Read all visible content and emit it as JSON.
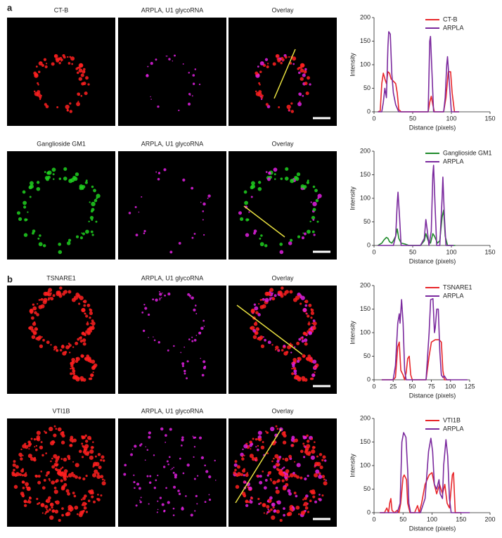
{
  "panel_labels": [
    "a",
    "b"
  ],
  "rows": [
    {
      "image_titles": [
        "CT-B",
        "ARPLA, U1 glycoRNA",
        "Overlay"
      ]
    },
    {
      "image_titles": [
        "Ganglioside GM1",
        "ARPLA, U1 glycoRNA",
        "Overlay"
      ]
    },
    {
      "image_titles": [
        "TSNARE1",
        "ARPLA, U1 glycoRNA",
        "Overlay"
      ]
    },
    {
      "image_titles": [
        "VTI1B",
        "ARPLA, U1 glycoRNA",
        "Overlay"
      ]
    }
  ],
  "chart_data": [
    {
      "type": "line",
      "xlabel": "Distance (pixels)",
      "ylabel": "Intensity",
      "xlim": [
        0,
        150
      ],
      "xticks": [
        0,
        50,
        100,
        150
      ],
      "ylim": [
        0,
        200
      ],
      "yticks": [
        0,
        50,
        100,
        150,
        200
      ],
      "series": [
        {
          "name": "CT-B",
          "color": "#e8262a",
          "x": [
            5,
            8,
            10,
            12,
            14,
            16,
            18,
            20,
            22,
            25,
            28,
            30,
            32,
            35,
            70,
            72,
            74,
            76,
            78,
            90,
            93,
            96,
            99,
            101,
            104,
            110
          ],
          "values": [
            0,
            2,
            60,
            82,
            70,
            60,
            85,
            82,
            70,
            65,
            60,
            40,
            5,
            0,
            0,
            20,
            33,
            15,
            0,
            0,
            30,
            85,
            85,
            40,
            0,
            0
          ]
        },
        {
          "name": "ARPLA",
          "color": "#7b2a9e",
          "x": [
            5,
            10,
            12,
            14,
            16,
            18,
            19,
            21,
            23,
            25,
            28,
            32,
            70,
            72,
            73,
            75,
            77,
            90,
            92,
            94,
            95,
            97,
            100,
            110
          ],
          "values": [
            0,
            0,
            20,
            50,
            30,
            140,
            170,
            165,
            80,
            40,
            15,
            0,
            0,
            150,
            160,
            80,
            0,
            0,
            30,
            100,
            117,
            70,
            0,
            0
          ]
        }
      ]
    },
    {
      "type": "line",
      "xlabel": "Distance (pixels)",
      "ylabel": "Intensity",
      "xlim": [
        0,
        150
      ],
      "xticks": [
        0,
        50,
        100,
        150
      ],
      "ylim": [
        0,
        200
      ],
      "yticks": [
        0,
        50,
        100,
        150,
        200
      ],
      "series": [
        {
          "name": "Ganglioside GM1",
          "color": "#1e8a2a",
          "x": [
            5,
            10,
            13,
            16,
            18,
            20,
            23,
            25,
            28,
            30,
            32,
            35,
            40,
            45,
            60,
            65,
            67,
            70,
            73,
            76,
            78,
            82,
            85,
            88,
            90,
            92,
            95,
            105
          ],
          "values": [
            0,
            5,
            12,
            17,
            15,
            8,
            5,
            10,
            20,
            35,
            15,
            5,
            3,
            0,
            0,
            10,
            25,
            10,
            5,
            25,
            20,
            5,
            10,
            60,
            75,
            20,
            0,
            0
          ]
        },
        {
          "name": "ARPLA",
          "color": "#7b2a9e",
          "x": [
            5,
            25,
            28,
            30,
            31,
            33,
            35,
            60,
            65,
            67,
            69,
            71,
            74,
            76,
            77,
            79,
            81,
            85,
            88,
            89,
            91,
            93,
            103
          ],
          "values": [
            0,
            0,
            20,
            90,
            113,
            60,
            0,
            0,
            15,
            55,
            30,
            0,
            30,
            150,
            170,
            80,
            0,
            0,
            100,
            145,
            60,
            0,
            0
          ]
        }
      ]
    },
    {
      "type": "line",
      "xlabel": "Distance (pixels)",
      "ylabel": "Intensity",
      "xlim": [
        0,
        125
      ],
      "xticks": [
        0,
        25,
        50,
        75,
        100,
        125
      ],
      "ylim": [
        0,
        200
      ],
      "yticks": [
        0,
        50,
        100,
        150,
        200
      ],
      "series": [
        {
          "name": "TSNARE1",
          "color": "#e8262a",
          "x": [
            10,
            25,
            28,
            31,
            33,
            35,
            38,
            40,
            42,
            44,
            46,
            48,
            50,
            68,
            72,
            75,
            80,
            85,
            88,
            90,
            92,
            100
          ],
          "values": [
            0,
            0,
            5,
            70,
            80,
            20,
            10,
            0,
            15,
            45,
            50,
            10,
            0,
            0,
            50,
            80,
            85,
            85,
            80,
            20,
            0,
            0
          ]
        },
        {
          "name": "ARPLA",
          "color": "#7b2a9e",
          "x": [
            10,
            25,
            28,
            31,
            33,
            34,
            36,
            38,
            40,
            42,
            68,
            72,
            74,
            77,
            79,
            80,
            82,
            84,
            86,
            88,
            90,
            92,
            95,
            122
          ],
          "values": [
            0,
            0,
            30,
            120,
            140,
            120,
            170,
            120,
            20,
            0,
            0,
            100,
            170,
            172,
            100,
            110,
            150,
            150,
            60,
            10,
            5,
            8,
            0,
            0
          ]
        }
      ]
    },
    {
      "type": "line",
      "xlabel": "Distance (pixels)",
      "ylabel": "Intensity",
      "xlim": [
        0,
        200
      ],
      "xticks": [
        0,
        50,
        100,
        150,
        200
      ],
      "ylim": [
        0,
        200
      ],
      "yticks": [
        0,
        50,
        100,
        150,
        200
      ],
      "series": [
        {
          "name": "VTI1B",
          "color": "#e8262a",
          "x": [
            10,
            18,
            22,
            25,
            27,
            29,
            31,
            35,
            40,
            43,
            46,
            50,
            52,
            56,
            58,
            62,
            70,
            75,
            78,
            82,
            88,
            95,
            100,
            104,
            108,
            113,
            118,
            122,
            126,
            130,
            135,
            137,
            140,
            150
          ],
          "values": [
            0,
            0,
            10,
            0,
            20,
            30,
            5,
            0,
            5,
            0,
            20,
            75,
            80,
            70,
            20,
            0,
            0,
            15,
            0,
            20,
            60,
            80,
            85,
            60,
            40,
            60,
            40,
            60,
            20,
            10,
            80,
            85,
            0,
            0
          ]
        },
        {
          "name": "ARPLA",
          "color": "#7b2a9e",
          "x": [
            10,
            40,
            45,
            48,
            51,
            55,
            58,
            60,
            63,
            80,
            88,
            94,
            98,
            101,
            104,
            108,
            112,
            114,
            118,
            120,
            124,
            127,
            130,
            133,
            165
          ],
          "values": [
            0,
            0,
            20,
            150,
            170,
            160,
            90,
            20,
            0,
            0,
            30,
            130,
            158,
            130,
            60,
            50,
            70,
            40,
            30,
            100,
            155,
            120,
            30,
            0,
            0
          ]
        }
      ]
    }
  ]
}
